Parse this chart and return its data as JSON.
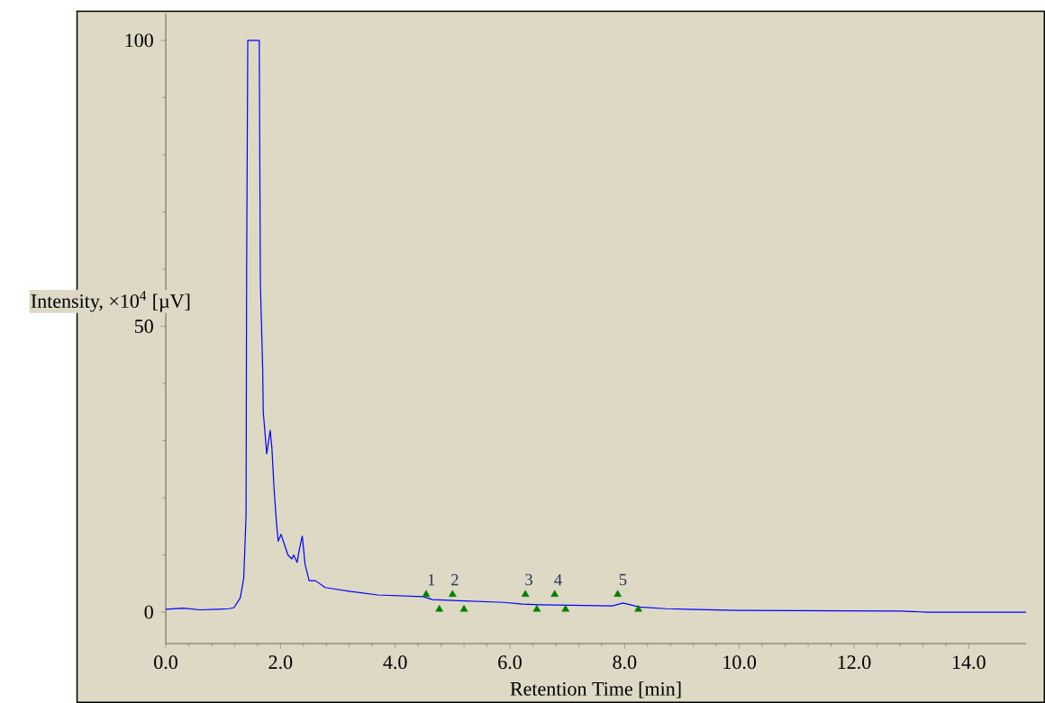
{
  "chart_data": {
    "type": "line",
    "xlabel": "Retention Time [min]",
    "ylabel": "Intensity, ×10$^{4}$ [µV]",
    "xlim": [
      0,
      15
    ],
    "ylim": [
      -5.5,
      104.7
    ],
    "xticks": [
      {
        "value": 0,
        "label": "0.0"
      },
      {
        "value": 2,
        "label": "2.0"
      },
      {
        "value": 4,
        "label": "4.0"
      },
      {
        "value": 6,
        "label": "6.0"
      },
      {
        "value": 8,
        "label": "8.0"
      },
      {
        "value": 10,
        "label": "10.0"
      },
      {
        "value": 12,
        "label": "12.0"
      },
      {
        "value": 14,
        "label": "14.0"
      }
    ],
    "yticks": [
      0,
      50,
      100
    ],
    "grid": false,
    "series": [
      {
        "color": "#0000ff",
        "marker": "none",
        "x": [
          0,
          0.3,
          0.6,
          0.9,
          1.1,
          1.19,
          1.3,
          1.36,
          1.4,
          1.41,
          1.43,
          1.63,
          1.65,
          1.69,
          1.7,
          1.76,
          1.82,
          1.85,
          1.89,
          1.93,
          1.96,
          2.01,
          2.13,
          2.2,
          2.23,
          2.29,
          2.33,
          2.38,
          2.43,
          2.5,
          2.61,
          2.78,
          2.91,
          3.23,
          3.7,
          4.49,
          4.65,
          5.12,
          5.9,
          6.22,
          6.53,
          7.79,
          7.97,
          8.26,
          8.73,
          9.98,
          12.81,
          13.28,
          15
        ],
        "values": [
          0.5,
          0.7,
          0.4,
          0.5,
          0.6,
          0.8,
          2.5,
          6,
          17,
          60,
          100,
          100,
          57.5,
          42.5,
          35,
          27.7,
          31.8,
          28.8,
          21.3,
          15.7,
          12.4,
          13.6,
          10,
          9.3,
          10,
          8.7,
          11,
          13.3,
          8.3,
          5.5,
          5.5,
          4.3,
          4.1,
          3.6,
          3.0,
          2.7,
          2.2,
          2.0,
          1.7,
          1.4,
          1.3,
          1.1,
          1.6,
          0.9,
          0.6,
          0.3,
          0.2,
          0,
          0
        ]
      },
      {
        "type": "scatter",
        "color": "#008000",
        "marker": "triangle",
        "x": [
          4.54,
          5.0,
          6.27,
          6.78,
          7.88
        ],
        "values": [
          3.1,
          3.1,
          3.1,
          3.1,
          3.1
        ]
      },
      {
        "type": "scatter",
        "color": "#008000",
        "marker": "triangle",
        "x": [
          4.77,
          5.2,
          6.47,
          6.97,
          8.24
        ],
        "values": [
          0.5,
          0.5,
          0.5,
          0.5,
          0.5
        ]
      }
    ],
    "annotations": [
      {
        "text": "1",
        "x": 4.63,
        "y": 3.5
      },
      {
        "text": "2",
        "x": 5.04,
        "y": 3.5
      },
      {
        "text": "3",
        "x": 6.33,
        "y": 3.5
      },
      {
        "text": "4",
        "x": 6.84,
        "y": 3.5
      },
      {
        "text": "5",
        "x": 7.97,
        "y": 3.5
      }
    ]
  }
}
